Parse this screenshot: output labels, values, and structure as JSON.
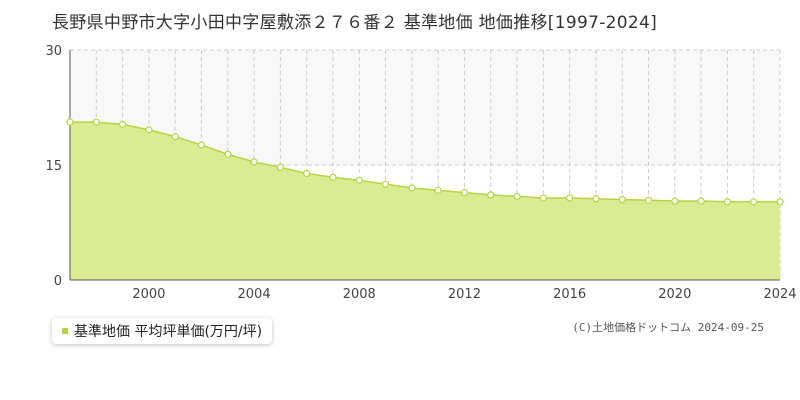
{
  "title": "長野県中野市大字小田中字屋敷添２７６番２ 基準地価 地価推移[1997-2024]",
  "legend": {
    "label": "基準地価 平均坪単価(万円/坪)"
  },
  "credit": "(C)土地価格ドットコム 2024-09-25",
  "colors": {
    "fill": "#dbeb91",
    "line": "#b5d442",
    "point_fill": "#ffffff",
    "grid": "#cccccc"
  },
  "chart_data": {
    "type": "area",
    "title": "長野県中野市大字小田中字屋敷添２７６番２ 基準地価 地価推移[1997-2024]",
    "xlabel": "",
    "ylabel": "",
    "xlim": [
      1997,
      2024
    ],
    "ylim": [
      0,
      30
    ],
    "yticks": [
      0,
      15,
      30
    ],
    "xticks": [
      2000,
      2004,
      2008,
      2012,
      2016,
      2020,
      2024
    ],
    "grid": true,
    "legend_position": "bottom-left",
    "series": [
      {
        "name": "基準地価 平均坪単価(万円/坪)",
        "x": [
          1997,
          1998,
          1999,
          2000,
          2001,
          2002,
          2003,
          2004,
          2005,
          2006,
          2007,
          2008,
          2009,
          2010,
          2011,
          2012,
          2013,
          2014,
          2015,
          2016,
          2017,
          2018,
          2019,
          2020,
          2021,
          2022,
          2023,
          2024
        ],
        "values": [
          20.6,
          20.6,
          20.3,
          19.6,
          18.7,
          17.6,
          16.4,
          15.4,
          14.7,
          13.9,
          13.4,
          13.0,
          12.5,
          12.0,
          11.7,
          11.4,
          11.1,
          10.9,
          10.7,
          10.7,
          10.6,
          10.5,
          10.4,
          10.3,
          10.3,
          10.2,
          10.2,
          10.2
        ]
      }
    ]
  }
}
